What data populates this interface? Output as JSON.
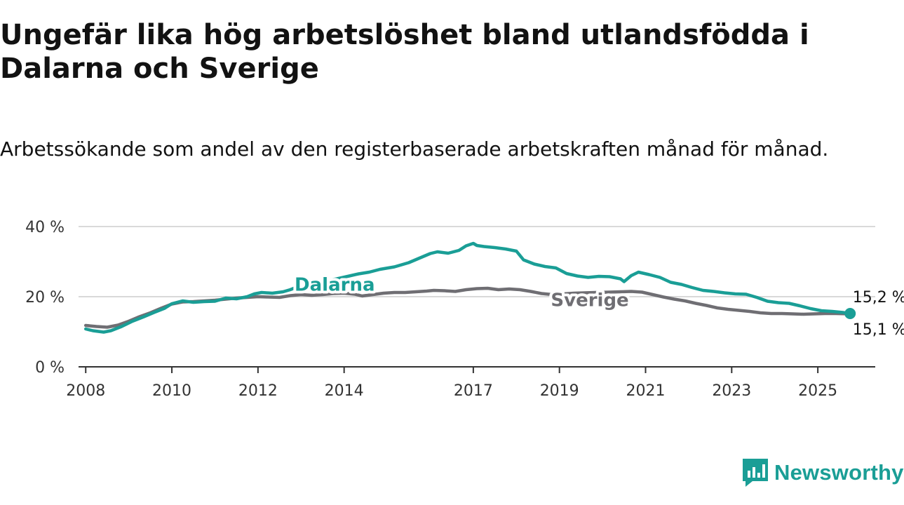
{
  "title": "Ungefär lika hög arbetslöshet bland utlandsfödda i Dalarna och Sverige",
  "subtitle": "Arbetssökande som andel av den registerbaserade arbetskraften månad för månad.",
  "brand": {
    "name": "Newsworthy",
    "color": "#1a9e96"
  },
  "chart_data": {
    "type": "line",
    "title": "Ungefär lika hög arbetslöshet bland utlandsfödda i Dalarna och Sverige",
    "subtitle": "Arbetssökande som andel av den registerbaserade arbetskraften månad för månad.",
    "xlabel": "",
    "ylabel": "",
    "ylim": [
      0,
      40
    ],
    "xlim": [
      "2007-11",
      "2026-05"
    ],
    "grid": true,
    "legend": "inline labels",
    "y_ticks": [
      {
        "value": 0,
        "label": "0 %"
      },
      {
        "value": 20,
        "label": "20 %"
      },
      {
        "value": 40,
        "label": "40 %"
      }
    ],
    "x_ticks": [
      "2008",
      "2010",
      "2012",
      "2014",
      "2017",
      "2019",
      "2021",
      "2023",
      "2025"
    ],
    "end_labels": {
      "upper": "15,2 %",
      "lower": "15,1 %"
    },
    "series": [
      {
        "name": "Dalarna",
        "color": "#1a9e96",
        "points": [
          [
            "2008-01",
            10.8
          ],
          [
            "2008-03",
            10.3
          ],
          [
            "2008-06",
            9.9
          ],
          [
            "2008-08",
            10.3
          ],
          [
            "2008-11",
            11.5
          ],
          [
            "2009-02",
            13.0
          ],
          [
            "2009-05",
            14.2
          ],
          [
            "2009-08",
            15.5
          ],
          [
            "2009-11",
            16.7
          ],
          [
            "2010-01",
            18.0
          ],
          [
            "2010-04",
            18.8
          ],
          [
            "2010-07",
            18.4
          ],
          [
            "2010-10",
            18.6
          ],
          [
            "2011-01",
            18.7
          ],
          [
            "2011-04",
            19.6
          ],
          [
            "2011-07",
            19.4
          ],
          [
            "2011-10",
            20.0
          ],
          [
            "2011-12",
            20.8
          ],
          [
            "2012-02",
            21.2
          ],
          [
            "2012-05",
            21.0
          ],
          [
            "2012-08",
            21.4
          ],
          [
            "2012-10",
            22.0
          ],
          [
            "2012-12",
            22.8
          ],
          [
            "2013-02",
            23.6
          ],
          [
            "2013-05",
            24.1
          ],
          [
            "2013-08",
            24.5
          ],
          [
            "2013-11",
            25.1
          ],
          [
            "2014-02",
            25.8
          ],
          [
            "2014-05",
            26.5
          ],
          [
            "2014-08",
            27.0
          ],
          [
            "2014-11",
            27.8
          ],
          [
            "2015-03",
            28.5
          ],
          [
            "2015-07",
            29.7
          ],
          [
            "2015-10",
            31.0
          ],
          [
            "2016-01",
            32.3
          ],
          [
            "2016-03",
            32.8
          ],
          [
            "2016-06",
            32.4
          ],
          [
            "2016-09",
            33.2
          ],
          [
            "2016-11",
            34.5
          ],
          [
            "2017-01",
            35.2
          ],
          [
            "2017-02",
            34.6
          ],
          [
            "2017-04",
            34.3
          ],
          [
            "2017-07",
            34.0
          ],
          [
            "2017-10",
            33.6
          ],
          [
            "2018-01",
            33.0
          ],
          [
            "2018-03",
            30.5
          ],
          [
            "2018-06",
            29.3
          ],
          [
            "2018-09",
            28.6
          ],
          [
            "2018-12",
            28.2
          ],
          [
            "2019-03",
            26.6
          ],
          [
            "2019-06",
            25.9
          ],
          [
            "2019-09",
            25.5
          ],
          [
            "2019-12",
            25.8
          ],
          [
            "2020-03",
            25.7
          ],
          [
            "2020-06",
            25.1
          ],
          [
            "2020-07",
            24.3
          ],
          [
            "2020-09",
            26.0
          ],
          [
            "2020-11",
            27.0
          ],
          [
            "2021-02",
            26.3
          ],
          [
            "2021-05",
            25.5
          ],
          [
            "2021-08",
            24.1
          ],
          [
            "2021-11",
            23.5
          ],
          [
            "2022-02",
            22.6
          ],
          [
            "2022-05",
            21.8
          ],
          [
            "2022-08",
            21.5
          ],
          [
            "2022-11",
            21.1
          ],
          [
            "2023-02",
            20.8
          ],
          [
            "2023-05",
            20.7
          ],
          [
            "2023-08",
            19.8
          ],
          [
            "2023-11",
            18.7
          ],
          [
            "2024-02",
            18.3
          ],
          [
            "2024-05",
            18.1
          ],
          [
            "2024-08",
            17.4
          ],
          [
            "2024-11",
            16.6
          ],
          [
            "2025-02",
            16.0
          ],
          [
            "2025-05",
            15.8
          ],
          [
            "2025-08",
            15.5
          ],
          [
            "2025-10",
            15.2
          ]
        ]
      },
      {
        "name": "Sverige",
        "color": "#6f6e73",
        "points": [
          [
            "2008-01",
            11.8
          ],
          [
            "2008-04",
            11.5
          ],
          [
            "2008-07",
            11.3
          ],
          [
            "2008-10",
            11.9
          ],
          [
            "2009-01",
            13.0
          ],
          [
            "2009-04",
            14.3
          ],
          [
            "2009-07",
            15.4
          ],
          [
            "2009-10",
            16.7
          ],
          [
            "2010-01",
            17.9
          ],
          [
            "2010-04",
            18.5
          ],
          [
            "2010-07",
            18.6
          ],
          [
            "2010-10",
            18.8
          ],
          [
            "2011-01",
            19.0
          ],
          [
            "2011-04",
            19.3
          ],
          [
            "2011-07",
            19.6
          ],
          [
            "2011-10",
            19.8
          ],
          [
            "2012-01",
            20.0
          ],
          [
            "2012-04",
            19.9
          ],
          [
            "2012-07",
            19.8
          ],
          [
            "2012-10",
            20.3
          ],
          [
            "2013-01",
            20.6
          ],
          [
            "2013-04",
            20.4
          ],
          [
            "2013-07",
            20.6
          ],
          [
            "2013-10",
            20.9
          ],
          [
            "2014-01",
            21.0
          ],
          [
            "2014-04",
            20.7
          ],
          [
            "2014-06",
            20.2
          ],
          [
            "2014-09",
            20.6
          ],
          [
            "2014-12",
            21.0
          ],
          [
            "2015-03",
            21.2
          ],
          [
            "2015-06",
            21.2
          ],
          [
            "2015-09",
            21.4
          ],
          [
            "2015-12",
            21.6
          ],
          [
            "2016-02",
            21.8
          ],
          [
            "2016-05",
            21.7
          ],
          [
            "2016-08",
            21.5
          ],
          [
            "2016-11",
            22.0
          ],
          [
            "2017-02",
            22.3
          ],
          [
            "2017-05",
            22.4
          ],
          [
            "2017-08",
            22.0
          ],
          [
            "2017-11",
            22.2
          ],
          [
            "2018-02",
            22.0
          ],
          [
            "2018-05",
            21.5
          ],
          [
            "2018-08",
            20.9
          ],
          [
            "2018-11",
            20.6
          ],
          [
            "2019-02",
            20.8
          ],
          [
            "2019-05",
            21.0
          ],
          [
            "2019-08",
            21.1
          ],
          [
            "2019-11",
            21.2
          ],
          [
            "2020-03",
            21.3
          ],
          [
            "2020-06",
            21.4
          ],
          [
            "2020-09",
            21.5
          ],
          [
            "2020-12",
            21.3
          ],
          [
            "2021-03",
            20.6
          ],
          [
            "2021-06",
            19.9
          ],
          [
            "2021-09",
            19.3
          ],
          [
            "2021-12",
            18.8
          ],
          [
            "2022-03",
            18.1
          ],
          [
            "2022-06",
            17.5
          ],
          [
            "2022-09",
            16.8
          ],
          [
            "2022-12",
            16.4
          ],
          [
            "2023-03",
            16.1
          ],
          [
            "2023-06",
            15.8
          ],
          [
            "2023-09",
            15.4
          ],
          [
            "2023-12",
            15.2
          ],
          [
            "2024-03",
            15.2
          ],
          [
            "2024-06",
            15.1
          ],
          [
            "2024-09",
            15.0
          ],
          [
            "2024-12",
            15.1
          ],
          [
            "2025-03",
            15.2
          ],
          [
            "2025-06",
            15.2
          ],
          [
            "2025-10",
            15.1
          ]
        ]
      }
    ]
  }
}
